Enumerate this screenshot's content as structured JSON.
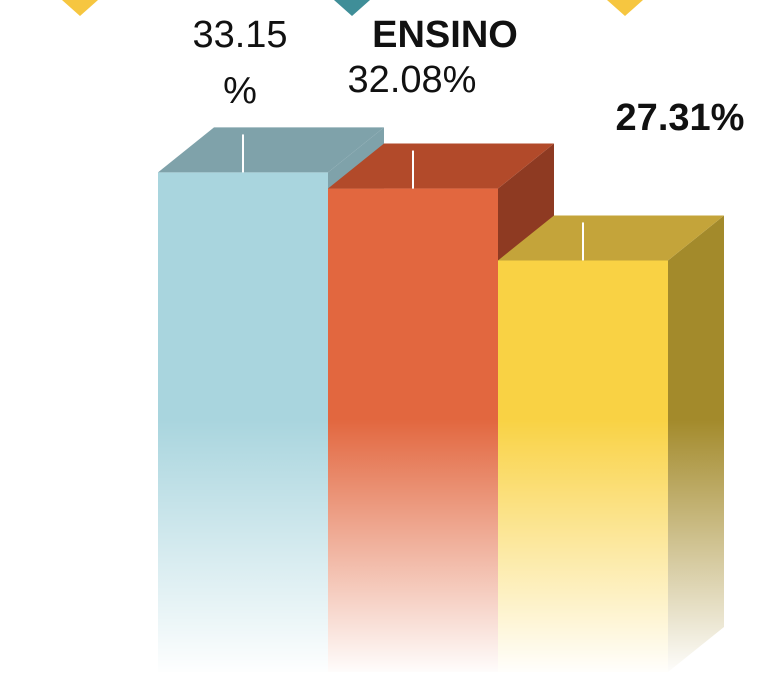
{
  "chart_data": {
    "type": "bar",
    "annotation": "ENSINO",
    "values": [
      33.15,
      32.08,
      27.31
    ],
    "value_labels": [
      "33.15 %",
      "32.08%",
      "27.31%"
    ],
    "colors": [
      "#a9d5de",
      "#e2673f",
      "#f9d244"
    ],
    "top_colors": [
      "#7fa2aa",
      "#b24a2a",
      "#c4a43a"
    ],
    "side_colors": [
      "#7fa2aa",
      "#8e3a22",
      "#a38a2b"
    ],
    "ylim": [
      0,
      44
    ]
  }
}
